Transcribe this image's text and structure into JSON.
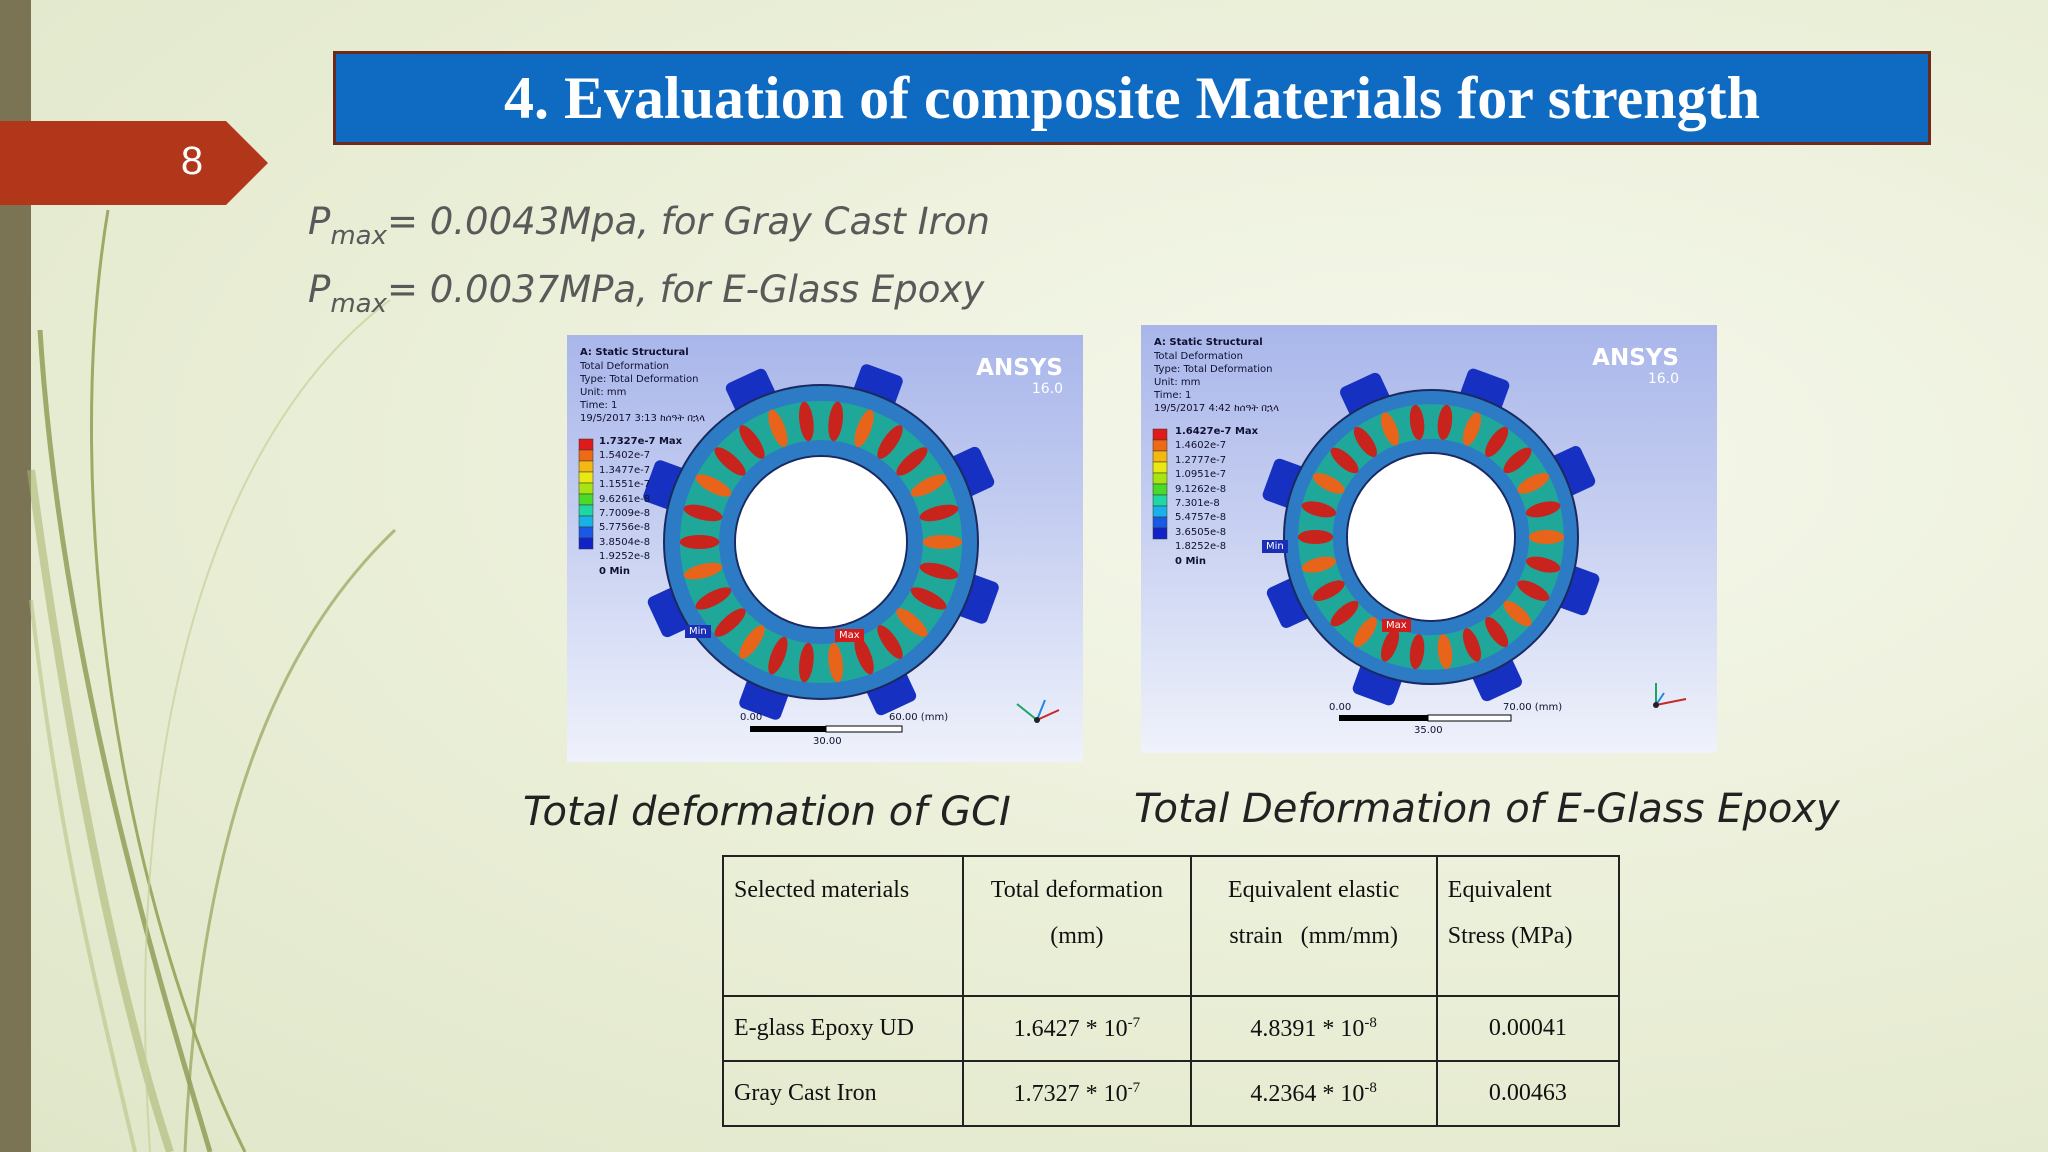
{
  "slide": {
    "number": "8",
    "title": "4. Evaluation of composite Materials for strength"
  },
  "pressure": [
    {
      "symbol": "P",
      "sub": "max",
      "text": "= 0.0043Mpa, for Gray Cast Iron"
    },
    {
      "symbol": "P",
      "sub": "max",
      "text": "= 0.0037MPa, for E-Glass Epoxy"
    }
  ],
  "sims": [
    {
      "title": "A: Static Structural",
      "meta": "Total Deformation\nType: Total Deformation\nUnit: mm\nTime: 1\n19/5/2017 3:13 ከሰዓት በኋላ",
      "legend": [
        "1.7327e-7 Max",
        "1.5402e-7",
        "1.3477e-7",
        "1.1551e-7",
        "9.6261e-8",
        "7.7009e-8",
        "5.7756e-8",
        "3.8504e-8",
        "1.9252e-8",
        "0 Min"
      ],
      "brand": "ANSYS",
      "version": "16.0",
      "min_label": "Min",
      "max_label": "Max",
      "scale_left": "0.00",
      "scale_right": "60.00 (mm)",
      "scale_mid": "30.00",
      "caption": "Total deformation of GCI"
    },
    {
      "title": "A: Static Structural",
      "meta": "Total Deformation\nType: Total Deformation\nUnit: mm\nTime: 1\n19/5/2017 4:42 ከሰዓት በኋላ",
      "legend": [
        "1.6427e-7 Max",
        "1.4602e-7",
        "1.2777e-7",
        "1.0951e-7",
        "9.1262e-8",
        "7.301e-8",
        "5.4757e-8",
        "3.6505e-8",
        "1.8252e-8",
        "0 Min"
      ],
      "brand": "ANSYS",
      "version": "16.0",
      "min_label": "Min",
      "max_label": "Max",
      "scale_left": "0.00",
      "scale_right": "70.00 (mm)",
      "scale_mid": "35.00",
      "caption": "Total Deformation of E-Glass Epoxy"
    }
  ],
  "legend_colors": [
    "#e01a1a",
    "#ee6a14",
    "#f4b812",
    "#e9e812",
    "#a6e512",
    "#4bd92a",
    "#1fd7a4",
    "#19b2e6",
    "#1a59e6",
    "#1222c9"
  ],
  "table": {
    "headers": [
      {
        "line1": "Selected materials",
        "line2": ""
      },
      {
        "line1": "Total deformation",
        "line2": "(mm)"
      },
      {
        "line1": "Equivalent elastic",
        "line2": "strain   (mm/mm)"
      },
      {
        "line1": "Equivalent",
        "line2": "Stress (MPa)"
      }
    ],
    "rows": [
      {
        "material": "E-glass Epoxy UD",
        "def_base": "1.6427 * 10",
        "def_exp": "-7",
        "strain_base": "4.8391 * 10",
        "strain_exp": "-8",
        "stress": "0.00041"
      },
      {
        "material": "Gray Cast Iron",
        "def_base": "1.7327 * 10",
        "def_exp": "-7",
        "strain_base": "4.2364 * 10",
        "strain_exp": "-8",
        "stress": "0.00463"
      }
    ]
  }
}
